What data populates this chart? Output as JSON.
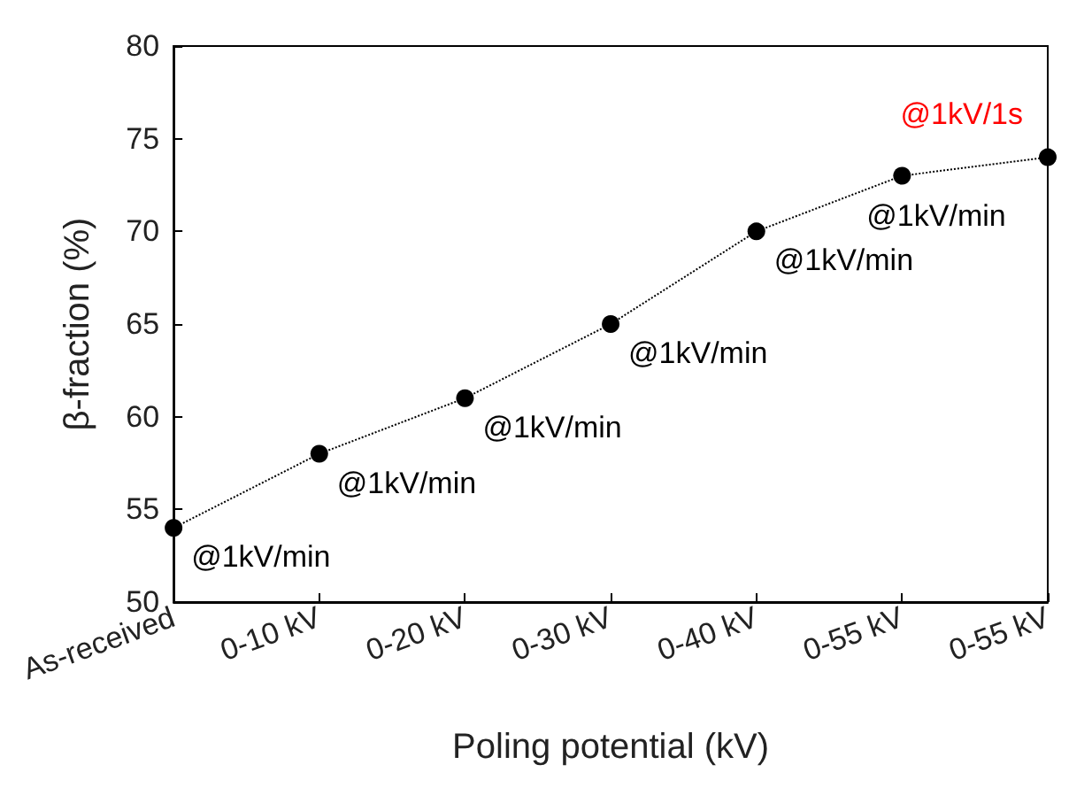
{
  "chart_data": {
    "type": "line",
    "xlabel": "Poling potential (kV)",
    "ylabel": "β-fraction (%)",
    "categories": [
      "As-received",
      "0-10 kV",
      "0-20 kV",
      "0-30 kV",
      "0-40 kV",
      "0-55 kV",
      "0-55 kV"
    ],
    "series": [
      {
        "color": "#000000",
        "values": [
          54,
          58,
          61,
          65,
          70,
          73,
          74
        ]
      }
    ],
    "annotations": [
      {
        "text": "@1kV/min",
        "x": "As-received",
        "y": 54
      },
      {
        "text": "@1kV/min",
        "x": "0-10 kV",
        "y": 58
      },
      {
        "text": "@1kV/min",
        "x": "0-20 kV",
        "y": 61
      },
      {
        "text": "@1kV/min",
        "x": "0-30 kV",
        "y": 65
      },
      {
        "text": "@1kV/min",
        "x": "0-40 kV",
        "y": 70
      },
      {
        "text": "@1kV/min",
        "x": "0-55 kV",
        "y": 73
      },
      "@1kV/1s"
    ],
    "ylim": [
      50,
      80
    ],
    "yticks": [
      50,
      55,
      60,
      65,
      70,
      75,
      80
    ],
    "grid": false,
    "marker": "circle",
    "line_style": "dotted"
  }
}
